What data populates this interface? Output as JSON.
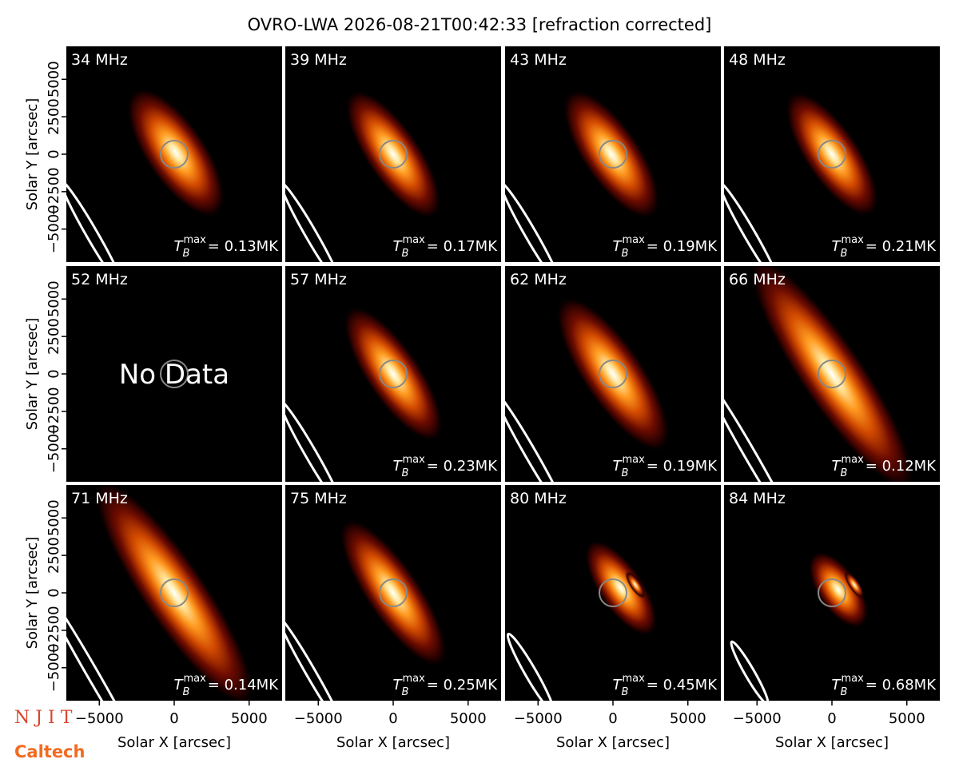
{
  "suptitle": "OVRO-LWA 2026-08-21T00:42:33 [refraction corrected]",
  "logos": [
    "N J I T",
    "Caltech"
  ],
  "tb_symbol": "T",
  "tb_sub": "B",
  "tb_sup": "max",
  "chart_data": [
    {
      "type": "image",
      "title": "34 MHz",
      "annotation": "= 0.13MK",
      "xlim": [
        -7200,
        7200
      ],
      "ylim": [
        -7200,
        7200
      ],
      "ylabel": "Solar Y [arcsec]",
      "yticks": [
        {
          "value": -5000,
          "label": "−5000"
        },
        {
          "value": -2500,
          "label": "−2500"
        },
        0,
        2500,
        5000
      ]
    },
    {
      "type": "image",
      "title": "39 MHz",
      "annotation": "= 0.17MK",
      "xlim": [
        -7200,
        7200
      ],
      "ylim": [
        -7200,
        7200
      ]
    },
    {
      "type": "image",
      "title": "43 MHz",
      "annotation": "= 0.19MK",
      "xlim": [
        -7200,
        7200
      ],
      "ylim": [
        -7200,
        7200
      ]
    },
    {
      "type": "image",
      "title": "48 MHz",
      "annotation": "= 0.21MK",
      "xlim": [
        -7200,
        7200
      ],
      "ylim": [
        -7200,
        7200
      ]
    },
    {
      "type": "image",
      "title": "52 MHz",
      "no_data": "No Data",
      "xlim": [
        -7200,
        7200
      ],
      "ylim": [
        -7200,
        7200
      ],
      "ylabel": "Solar Y [arcsec]",
      "yticks": [
        {
          "value": -5000,
          "label": "−5000"
        },
        {
          "value": -2500,
          "label": "−2500"
        },
        0,
        2500,
        5000
      ]
    },
    {
      "type": "image",
      "title": "57 MHz",
      "annotation": "= 0.23MK",
      "xlim": [
        -7200,
        7200
      ],
      "ylim": [
        -7200,
        7200
      ]
    },
    {
      "type": "image",
      "title": "62 MHz",
      "annotation": "= 0.19MK",
      "xlim": [
        -7200,
        7200
      ],
      "ylim": [
        -7200,
        7200
      ]
    },
    {
      "type": "image",
      "title": "66 MHz",
      "annotation": "= 0.12MK",
      "xlim": [
        -7200,
        7200
      ],
      "ylim": [
        -7200,
        7200
      ]
    },
    {
      "type": "image",
      "title": "71 MHz",
      "annotation": "= 0.14MK",
      "xlim": [
        -7200,
        7200
      ],
      "ylim": [
        -7200,
        7200
      ],
      "ylabel": "Solar Y [arcsec]",
      "yticks": [
        {
          "value": -5000,
          "label": "−5000"
        },
        {
          "value": -2500,
          "label": "−2500"
        },
        0,
        2500,
        5000
      ],
      "xlabel": "Solar X [arcsec]",
      "xticks": [
        {
          "value": -5000,
          "label": "−5000"
        },
        0,
        5000
      ]
    },
    {
      "type": "image",
      "title": "75 MHz",
      "annotation": "= 0.25MK",
      "xlim": [
        -7200,
        7200
      ],
      "ylim": [
        -7200,
        7200
      ],
      "xlabel": "Solar X [arcsec]",
      "xticks": [
        {
          "value": -5000,
          "label": "−5000"
        },
        0,
        5000
      ]
    },
    {
      "type": "image",
      "title": "80 MHz",
      "annotation": "= 0.45MK",
      "xlim": [
        -7200,
        7200
      ],
      "ylim": [
        -7200,
        7200
      ],
      "xlabel": "Solar X [arcsec]",
      "xticks": [
        {
          "value": -5000,
          "label": "−5000"
        },
        0,
        5000
      ]
    },
    {
      "type": "image",
      "title": "84 MHz",
      "annotation": "= 0.68MK",
      "xlim": [
        -7200,
        7200
      ],
      "ylim": [
        -7200,
        7200
      ],
      "xlabel": "Solar X [arcsec]",
      "xticks": [
        {
          "value": -5000,
          "label": "−5000"
        },
        0,
        5000
      ]
    }
  ]
}
